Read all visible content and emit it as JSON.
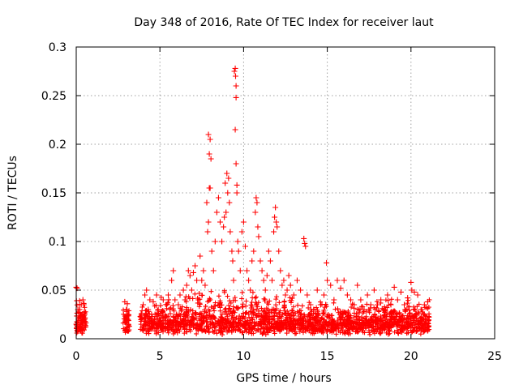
{
  "chart_data": {
    "type": "scatter",
    "title": "Day 348 of 2016, Rate Of TEC Index for receiver laut",
    "xlabel": "GPS time / hours",
    "ylabel": "ROTI / TECUs",
    "xlim": [
      0,
      25
    ],
    "ylim": [
      0,
      0.3
    ],
    "x_ticks": [
      0,
      5,
      10,
      15,
      20,
      25
    ],
    "y_ticks": [
      0,
      0.05,
      0.1,
      0.15,
      0.2,
      0.25,
      0.3
    ],
    "x_tick_labels": [
      "0",
      "5",
      "10",
      "15",
      "20",
      "25"
    ],
    "y_tick_labels": [
      "0",
      "0.05",
      "0.1",
      "0.15",
      "0.2",
      "0.25",
      "0.3"
    ],
    "grid": true,
    "marker": "+",
    "color": "#ff0000",
    "series": [
      {
        "points": [
          [
            0.0,
            0.053
          ],
          [
            0.05,
            0.052
          ],
          [
            0.1,
            0.03
          ],
          [
            0.15,
            0.02
          ],
          [
            0.2,
            0.027
          ],
          [
            0.25,
            0.015
          ],
          [
            0.3,
            0.01
          ],
          [
            0.35,
            0.025
          ],
          [
            0.4,
            0.04
          ],
          [
            0.45,
            0.035
          ],
          [
            0.5,
            0.02
          ],
          [
            0.55,
            0.012
          ],
          [
            0.0,
            0.015
          ],
          [
            0.1,
            0.008
          ],
          [
            0.2,
            0.03
          ],
          [
            0.3,
            0.035
          ],
          [
            0.4,
            0.022
          ],
          [
            0.5,
            0.018
          ],
          [
            2.9,
            0.038
          ],
          [
            2.95,
            0.02
          ],
          [
            3.0,
            0.012
          ],
          [
            3.05,
            0.036
          ],
          [
            3.1,
            0.015
          ],
          [
            3.0,
            0.03
          ],
          [
            2.95,
            0.008
          ],
          [
            3.1,
            0.025
          ],
          [
            3.9,
            0.02
          ],
          [
            4.0,
            0.035
          ],
          [
            4.1,
            0.045
          ],
          [
            4.2,
            0.05
          ],
          [
            4.3,
            0.03
          ],
          [
            4.4,
            0.04
          ],
          [
            4.5,
            0.025
          ],
          [
            4.6,
            0.038
          ],
          [
            4.7,
            0.02
          ],
          [
            4.8,
            0.045
          ],
          [
            4.9,
            0.03
          ],
          [
            5.0,
            0.018
          ],
          [
            5.1,
            0.028
          ],
          [
            5.2,
            0.04
          ],
          [
            5.3,
            0.022
          ],
          [
            5.4,
            0.035
          ],
          [
            5.5,
            0.045
          ],
          [
            5.6,
            0.03
          ],
          [
            5.7,
            0.06
          ],
          [
            5.8,
            0.07
          ],
          [
            5.9,
            0.04
          ],
          [
            6.0,
            0.025
          ],
          [
            6.1,
            0.035
          ],
          [
            6.2,
            0.045
          ],
          [
            6.3,
            0.03
          ],
          [
            6.4,
            0.05
          ],
          [
            6.5,
            0.04
          ],
          [
            6.6,
            0.055
          ],
          [
            6.7,
            0.07
          ],
          [
            6.8,
            0.065
          ],
          [
            6.9,
            0.05
          ],
          [
            7.0,
            0.068
          ],
          [
            7.1,
            0.075
          ],
          [
            7.2,
            0.06
          ],
          [
            7.3,
            0.04
          ],
          [
            7.4,
            0.085
          ],
          [
            7.5,
            0.06
          ],
          [
            7.6,
            0.07
          ],
          [
            7.7,
            0.055
          ],
          [
            7.8,
            0.14
          ],
          [
            7.85,
            0.11
          ],
          [
            7.9,
            0.21
          ],
          [
            7.95,
            0.19
          ],
          [
            8.0,
            0.155
          ],
          [
            8.05,
            0.185
          ],
          [
            8.0,
            0.205
          ],
          [
            7.95,
            0.155
          ],
          [
            7.9,
            0.12
          ],
          [
            8.1,
            0.09
          ],
          [
            8.2,
            0.07
          ],
          [
            8.3,
            0.1
          ],
          [
            8.4,
            0.13
          ],
          [
            8.5,
            0.145
          ],
          [
            8.6,
            0.12
          ],
          [
            8.7,
            0.1
          ],
          [
            8.8,
            0.115
          ],
          [
            8.85,
            0.125
          ],
          [
            8.9,
            0.16
          ],
          [
            8.95,
            0.13
          ],
          [
            9.0,
            0.17
          ],
          [
            9.05,
            0.15
          ],
          [
            9.1,
            0.165
          ],
          [
            9.15,
            0.14
          ],
          [
            9.2,
            0.11
          ],
          [
            9.3,
            0.09
          ],
          [
            9.35,
            0.08
          ],
          [
            9.4,
            0.06
          ],
          [
            9.5,
            0.278
          ],
          [
            9.52,
            0.27
          ],
          [
            9.55,
            0.26
          ],
          [
            9.55,
            0.248
          ],
          [
            9.45,
            0.275
          ],
          [
            9.5,
            0.215
          ],
          [
            9.55,
            0.18
          ],
          [
            9.6,
            0.158
          ],
          [
            9.6,
            0.15
          ],
          [
            9.65,
            0.1
          ],
          [
            9.7,
            0.09
          ],
          [
            9.8,
            0.07
          ],
          [
            9.9,
            0.11
          ],
          [
            10.0,
            0.12
          ],
          [
            10.1,
            0.095
          ],
          [
            10.2,
            0.07
          ],
          [
            10.3,
            0.06
          ],
          [
            10.4,
            0.05
          ],
          [
            10.5,
            0.08
          ],
          [
            10.6,
            0.09
          ],
          [
            10.7,
            0.13
          ],
          [
            10.75,
            0.145
          ],
          [
            10.8,
            0.14
          ],
          [
            10.85,
            0.115
          ],
          [
            10.9,
            0.105
          ],
          [
            11.0,
            0.08
          ],
          [
            11.1,
            0.07
          ],
          [
            11.2,
            0.06
          ],
          [
            11.3,
            0.05
          ],
          [
            11.4,
            0.065
          ],
          [
            11.5,
            0.09
          ],
          [
            11.6,
            0.08
          ],
          [
            11.7,
            0.06
          ],
          [
            11.8,
            0.11
          ],
          [
            11.85,
            0.125
          ],
          [
            11.9,
            0.135
          ],
          [
            11.95,
            0.12
          ],
          [
            12.0,
            0.115
          ],
          [
            12.1,
            0.09
          ],
          [
            12.2,
            0.07
          ],
          [
            12.3,
            0.055
          ],
          [
            12.4,
            0.06
          ],
          [
            12.5,
            0.045
          ],
          [
            12.6,
            0.05
          ],
          [
            12.7,
            0.065
          ],
          [
            12.8,
            0.055
          ],
          [
            13.0,
            0.045
          ],
          [
            13.2,
            0.06
          ],
          [
            13.4,
            0.05
          ],
          [
            13.6,
            0.103
          ],
          [
            13.65,
            0.098
          ],
          [
            13.7,
            0.095
          ],
          [
            13.8,
            0.045
          ],
          [
            14.0,
            0.035
          ],
          [
            14.2,
            0.03
          ],
          [
            14.4,
            0.05
          ],
          [
            14.6,
            0.035
          ],
          [
            14.8,
            0.045
          ],
          [
            14.95,
            0.078
          ],
          [
            15.0,
            0.06
          ],
          [
            15.2,
            0.055
          ],
          [
            15.4,
            0.04
          ],
          [
            15.6,
            0.06
          ],
          [
            15.8,
            0.052
          ],
          [
            16.0,
            0.06
          ],
          [
            16.2,
            0.045
          ],
          [
            16.4,
            0.04
          ],
          [
            16.6,
            0.035
          ],
          [
            16.8,
            0.055
          ],
          [
            17.0,
            0.04
          ],
          [
            17.2,
            0.03
          ],
          [
            17.4,
            0.045
          ],
          [
            17.6,
            0.035
          ],
          [
            17.8,
            0.05
          ],
          [
            18.0,
            0.035
          ],
          [
            18.2,
            0.04
          ],
          [
            18.4,
            0.03
          ],
          [
            18.6,
            0.045
          ],
          [
            18.8,
            0.035
          ],
          [
            19.0,
            0.053
          ],
          [
            19.2,
            0.04
          ],
          [
            19.4,
            0.048
          ],
          [
            19.6,
            0.035
          ],
          [
            19.8,
            0.042
          ],
          [
            20.0,
            0.058
          ],
          [
            20.05,
            0.05
          ],
          [
            20.2,
            0.048
          ],
          [
            20.4,
            0.045
          ],
          [
            20.6,
            0.03
          ],
          [
            20.8,
            0.035
          ],
          [
            21.0,
            0.038
          ],
          [
            4.0,
            0.012
          ],
          [
            4.5,
            0.01
          ],
          [
            5.0,
            0.015
          ],
          [
            5.5,
            0.012
          ],
          [
            6.0,
            0.01
          ],
          [
            6.5,
            0.014
          ],
          [
            7.0,
            0.012
          ],
          [
            7.5,
            0.015
          ],
          [
            8.0,
            0.02
          ],
          [
            8.5,
            0.018
          ],
          [
            9.0,
            0.025
          ],
          [
            9.5,
            0.02
          ],
          [
            10.0,
            0.015
          ],
          [
            10.5,
            0.012
          ],
          [
            11.0,
            0.018
          ],
          [
            11.5,
            0.02
          ],
          [
            12.0,
            0.015
          ],
          [
            12.5,
            0.012
          ],
          [
            13.0,
            0.015
          ],
          [
            13.5,
            0.01
          ],
          [
            14.0,
            0.012
          ],
          [
            14.5,
            0.015
          ],
          [
            15.0,
            0.01
          ],
          [
            15.5,
            0.012
          ],
          [
            16.0,
            0.015
          ],
          [
            16.5,
            0.01
          ],
          [
            17.0,
            0.012
          ],
          [
            17.5,
            0.015
          ],
          [
            18.0,
            0.01
          ],
          [
            18.5,
            0.012
          ],
          [
            19.0,
            0.015
          ],
          [
            19.5,
            0.01
          ],
          [
            20.0,
            0.012
          ],
          [
            20.5,
            0.01
          ],
          [
            21.0,
            0.012
          ]
        ]
      }
    ]
  }
}
